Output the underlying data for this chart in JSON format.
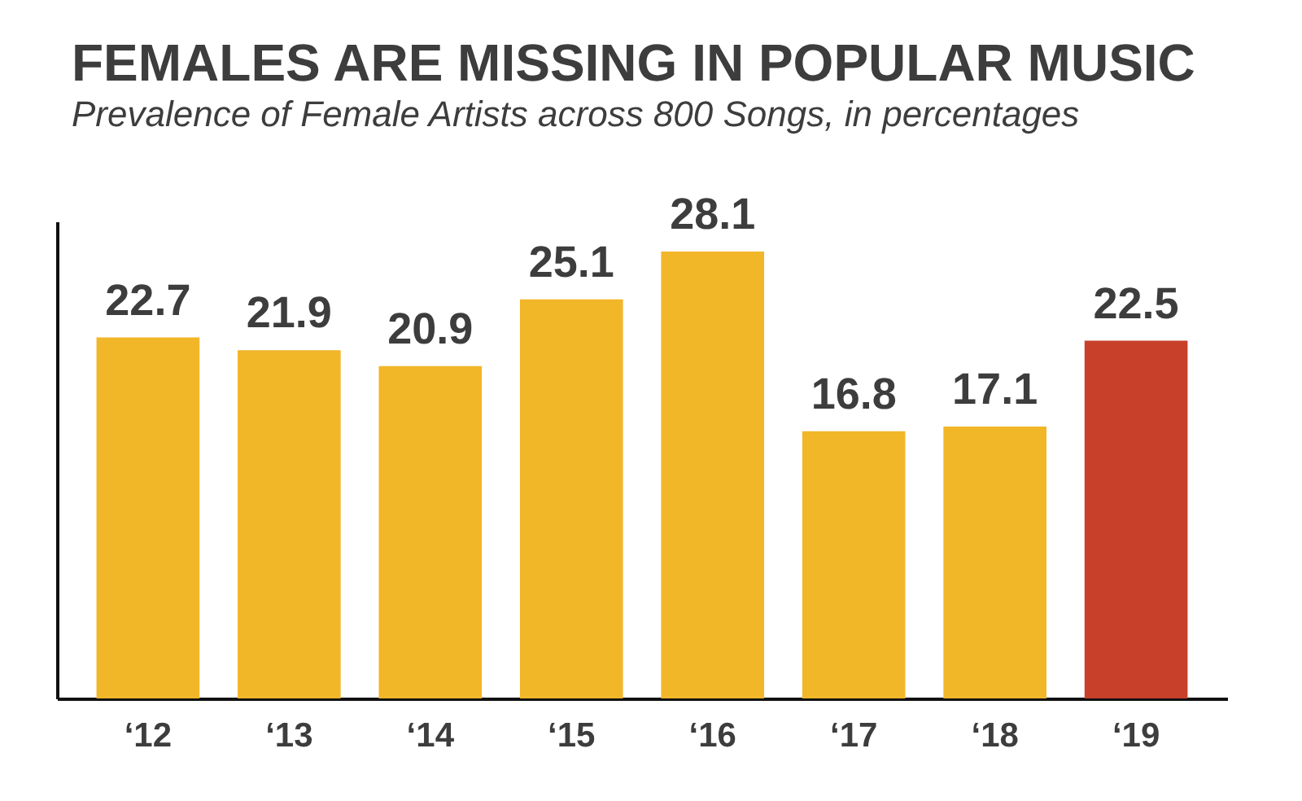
{
  "chart_data": {
    "type": "bar",
    "title": "FEMALES ARE MISSING IN POPULAR MUSIC",
    "subtitle": "Prevalence of Female Artists across 800 Songs, in percentages",
    "categories": [
      "‘12",
      "‘13",
      "‘14",
      "‘15",
      "‘16",
      "‘17",
      "‘18",
      "‘19"
    ],
    "values": [
      22.7,
      21.9,
      20.9,
      25.1,
      28.1,
      16.8,
      17.1,
      22.5
    ],
    "colors": [
      "#f2b629",
      "#f2b629",
      "#f2b629",
      "#f2b629",
      "#f2b629",
      "#f2b629",
      "#f2b629",
      "#c8402a"
    ],
    "data_labels": true,
    "tick_labels": "x"
  }
}
